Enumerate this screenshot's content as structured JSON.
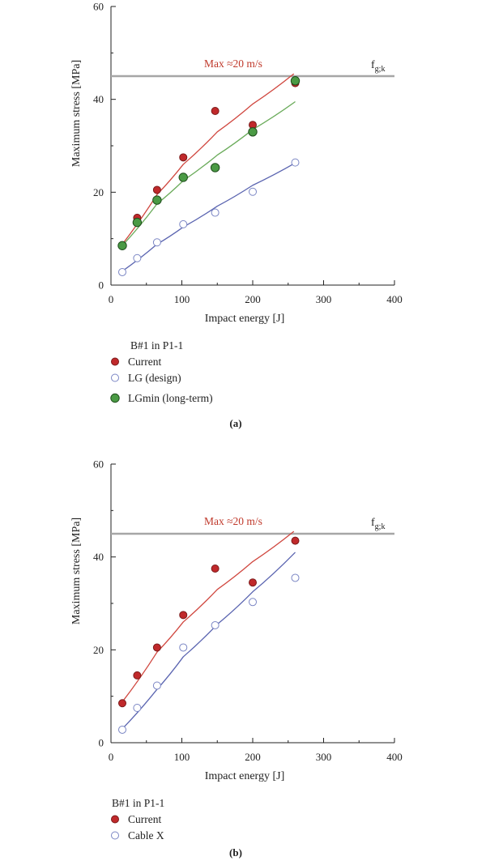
{
  "colors": {
    "current_fill": "#c0292b",
    "current_line": "#d0473f",
    "lg_stroke": "#7b86c4",
    "lg_line": "#5a64b0",
    "lgmin_fill": "#4a9a44",
    "lgmin_line": "#6aab5a",
    "threshold": "#a6a6a6",
    "annotation": "#c0392b"
  },
  "chart_data": [
    {
      "type": "scatter",
      "panel": "(a)",
      "xlabel": "Impact energy [J]",
      "ylabel": "Maximum stress [MPa]",
      "xlim": [
        0,
        400
      ],
      "ylim": [
        0,
        60
      ],
      "xticks": [
        0,
        100,
        200,
        300,
        400
      ],
      "yticks": [
        0,
        20,
        40,
        60
      ],
      "grid": false,
      "threshold": {
        "value": 45,
        "label_main": "f",
        "label_sub": "g;k"
      },
      "annotation": "Max ≈20 m/s",
      "legend_title": "B#1 in P1-1",
      "legend_position": "below",
      "series": [
        {
          "name": "Current",
          "marker": "filled-red",
          "x": [
            16,
            37,
            65,
            102,
            147,
            200,
            260
          ],
          "y": [
            8.5,
            14.5,
            20.5,
            27.5,
            37.5,
            34.5,
            43.5
          ],
          "fit": [
            [
              16,
              8.8
            ],
            [
              65,
              19.5
            ],
            [
              102,
              26.0
            ],
            [
              150,
              33.0
            ],
            [
              200,
              39.0
            ],
            [
              258,
              45.5
            ]
          ]
        },
        {
          "name": "LG (design)",
          "marker": "open-blue",
          "x": [
            16,
            37,
            65,
            102,
            147,
            200,
            260
          ],
          "y": [
            2.8,
            5.8,
            9.2,
            13.1,
            15.6,
            20.1,
            26.4
          ],
          "fit": [
            [
              16,
              3.0
            ],
            [
              65,
              8.8
            ],
            [
              102,
              12.5
            ],
            [
              150,
              17.0
            ],
            [
              200,
              21.5
            ],
            [
              260,
              26.3
            ]
          ]
        },
        {
          "name": "LGmin (long-term)",
          "marker": "filled-green",
          "x": [
            16,
            37,
            65,
            102,
            147,
            200,
            260
          ],
          "y": [
            8.5,
            13.5,
            18.3,
            23.2,
            25.3,
            33.0,
            44.0
          ],
          "fit": [
            [
              16,
              8.5
            ],
            [
              65,
              17.5
            ],
            [
              102,
              22.5
            ],
            [
              150,
              28.0
            ],
            [
              200,
              33.5
            ],
            [
              260,
              39.5
            ]
          ]
        }
      ]
    },
    {
      "type": "scatter",
      "panel": "(b)",
      "xlabel": "Impact energy [J]",
      "ylabel": "Maximum stress [MPa]",
      "xlim": [
        0,
        400
      ],
      "ylim": [
        0,
        60
      ],
      "xticks": [
        0,
        100,
        200,
        300,
        400
      ],
      "yticks": [
        0,
        20,
        40,
        60
      ],
      "grid": false,
      "threshold": {
        "value": 45,
        "label_main": "f",
        "label_sub": "g;k"
      },
      "annotation": "Max ≈20 m/s",
      "legend_title": "B#1 in P1-1",
      "legend_position": "below",
      "series": [
        {
          "name": "Current",
          "marker": "filled-red",
          "x": [
            16,
            37,
            65,
            102,
            147,
            200,
            260
          ],
          "y": [
            8.5,
            14.5,
            20.5,
            27.5,
            37.5,
            34.5,
            43.5
          ],
          "fit": [
            [
              16,
              8.8
            ],
            [
              65,
              19.5
            ],
            [
              102,
              26.0
            ],
            [
              150,
              33.0
            ],
            [
              200,
              39.0
            ],
            [
              258,
              45.5
            ]
          ]
        },
        {
          "name": "Cable X",
          "marker": "open-blue",
          "x": [
            16,
            37,
            65,
            102,
            147,
            200,
            260
          ],
          "y": [
            2.8,
            7.5,
            12.3,
            20.5,
            25.3,
            30.3,
            35.5
          ],
          "fit": [
            [
              16,
              3.0
            ],
            [
              65,
              11.5
            ],
            [
              102,
              18.5
            ],
            [
              150,
              25.5
            ],
            [
              200,
              32.5
            ],
            [
              260,
              41.0
            ]
          ]
        }
      ]
    }
  ]
}
